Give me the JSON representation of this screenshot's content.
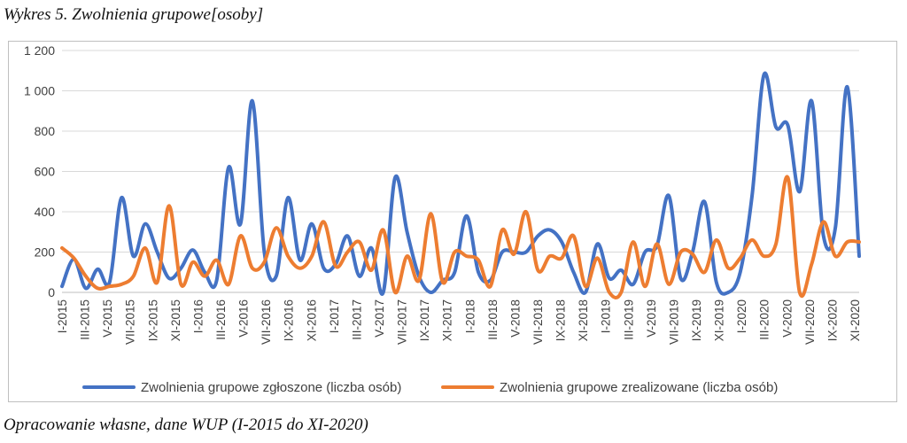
{
  "title": "Wykres 5. Zwolnienia grupowe[osoby]",
  "caption": "Opracowanie własne, dane WUP (I-2015 do XI-2020)",
  "chart_data": {
    "type": "line",
    "grid": true,
    "legend_position": "bottom",
    "ylim": [
      0,
      1200
    ],
    "y_ticks": [
      0,
      200,
      400,
      600,
      800,
      1000,
      1200
    ],
    "y_tick_labels": [
      "0",
      "200",
      "400",
      "600",
      "800",
      "1 000",
      "1 200"
    ],
    "x_labels": [
      "I-2015",
      "III-2015",
      "V-2015",
      "VII-2015",
      "IX-2015",
      "XI-2015",
      "I-2016",
      "III-2016",
      "V-2016",
      "VII-2016",
      "IX-2016",
      "XI-2016",
      "I-2017",
      "III-2017",
      "V-2017",
      "VII-2017",
      "IX-2017",
      "XI-2017",
      "I-2018",
      "III-2018",
      "V-2018",
      "VII-2018",
      "IX-2018",
      "XI-2018",
      "I-2019",
      "III-2019",
      "V-2019",
      "VII-2019",
      "IX-2019",
      "XI-2019",
      "I-2020",
      "III-2020",
      "V-2020",
      "VII-2020",
      "IX-2020",
      "XI-2020"
    ],
    "series": [
      {
        "name": "Zwolnienia grupowe zgłoszone (liczba osób)",
        "color": "#4472C4",
        "values": [
          30,
          165,
          20,
          115,
          50,
          470,
          180,
          340,
          200,
          70,
          120,
          210,
          100,
          60,
          620,
          340,
          950,
          200,
          80,
          470,
          160,
          340,
          120,
          140,
          280,
          80,
          220,
          0,
          570,
          300,
          80,
          0,
          60,
          100,
          380,
          100,
          60,
          200,
          200,
          200,
          280,
          310,
          250,
          100,
          0,
          240,
          70,
          110,
          40,
          200,
          230,
          480,
          70,
          200,
          450,
          50,
          0,
          100,
          480,
          1080,
          820,
          830,
          500,
          950,
          280,
          320,
          1020,
          180
        ]
      },
      {
        "name": "Zwolnienia grupowe zrealizowane (liczba osób)",
        "color": "#ED7D31",
        "values": [
          220,
          170,
          80,
          20,
          30,
          40,
          80,
          220,
          50,
          430,
          40,
          150,
          80,
          160,
          40,
          280,
          120,
          150,
          320,
          180,
          120,
          180,
          350,
          130,
          200,
          250,
          110,
          310,
          0,
          180,
          60,
          390,
          50,
          200,
          180,
          160,
          30,
          310,
          190,
          400,
          110,
          180,
          170,
          280,
          30,
          170,
          0,
          0,
          250,
          30,
          240,
          40,
          200,
          190,
          100,
          260,
          120,
          170,
          260,
          180,
          240,
          570,
          0,
          140,
          350,
          180,
          250,
          250
        ]
      }
    ]
  }
}
